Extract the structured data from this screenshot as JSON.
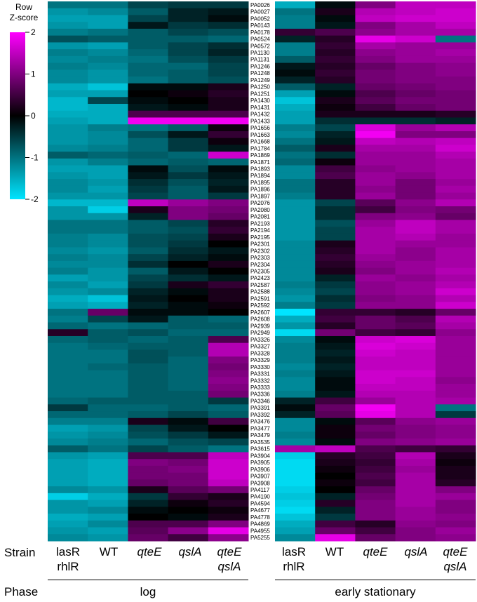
{
  "scale": {
    "title_line1": "Row",
    "title_line2": "Z-score",
    "ticks": [
      "2",
      "1",
      "0",
      "-1",
      "-2"
    ],
    "tick_values": [
      2,
      1,
      0,
      -1,
      -2
    ],
    "colors": [
      "#00e5ff",
      "#000000",
      "#ff00ff"
    ]
  },
  "strain_title": "Strain",
  "phase_title": "Phase",
  "strains": [
    {
      "line1": "lasR",
      "line2": "rhlR",
      "italic": true
    },
    {
      "line1": "WT",
      "line2": "",
      "italic": false
    },
    {
      "line1": "qteE",
      "line2": "",
      "italic": true
    },
    {
      "line1": "qslA",
      "line2": "",
      "italic": true
    },
    {
      "line1": "qteE",
      "line2": "qslA",
      "italic": true
    }
  ],
  "phases": [
    "log",
    "early stationary"
  ],
  "chart_data": {
    "type": "heatmap",
    "value_label": "Row Z-score",
    "zlim": [
      -2,
      2
    ],
    "genes": [
      "PA0026",
      "PA0027",
      "PA0052",
      "PA0143",
      "PA0178",
      "PA0524",
      "PA0572",
      "PA1130",
      "PA1131",
      "PA1246",
      "PA1248",
      "PA1249",
      "PA1250",
      "PA1251",
      "PA1430",
      "PA1431",
      "PA1432",
      "PA1433",
      "PA1656",
      "PA1663",
      "PA1668",
      "PA1784",
      "PA1869",
      "PA1871",
      "PA1893",
      "PA1894",
      "PA1895",
      "PA1896",
      "PA1897",
      "PA2076",
      "PA2080",
      "PA2081",
      "PA2193",
      "PA2194",
      "PA2195",
      "PA2301",
      "PA2302",
      "PA2303",
      "PA2304",
      "PA2305",
      "PA2423",
      "PA2587",
      "PA2588",
      "PA2591",
      "PA2592",
      "PA2607",
      "PA2608",
      "PA2939",
      "PA2949",
      "PA3326",
      "PA3327",
      "PA3328",
      "PA3329",
      "PA3330",
      "PA3331",
      "PA3332",
      "PA3333",
      "PA3336",
      "PA3346",
      "PA3391",
      "PA3392",
      "PA3476",
      "PA3477",
      "PA3479",
      "PA3535",
      "PA3615",
      "PA3904",
      "PA3905",
      "PA3906",
      "PA3907",
      "PA3908",
      "PA4117",
      "PA4190",
      "PA4594",
      "PA4677",
      "PA4778",
      "PA4869",
      "PA4955",
      "PA5255"
    ],
    "log_columns": [
      "lasR rhlR",
      "WT",
      "qteE",
      "qslA",
      "qteE qslA"
    ],
    "early_stationary_columns": [
      "lasR rhlR",
      "WT",
      "qteE",
      "qslA",
      "qteE qslA"
    ],
    "log_values": [
      [
        -1.0,
        -1.0,
        -0.6,
        -0.5,
        -0.5
      ],
      [
        -1.3,
        -1.2,
        -0.8,
        -0.3,
        -0.2
      ],
      [
        -1.4,
        -1.4,
        -0.6,
        -0.3,
        -0.1
      ],
      [
        -1.3,
        -1.4,
        -0.2,
        -0.5,
        -0.4
      ],
      [
        -1.1,
        -1.0,
        -0.8,
        -0.6,
        -0.7
      ],
      [
        -0.7,
        -0.8,
        -0.8,
        -0.8,
        -0.9
      ],
      [
        -1.3,
        -1.4,
        -0.8,
        -0.6,
        -0.4
      ],
      [
        -1.1,
        -1.2,
        -0.9,
        -0.6,
        -0.3
      ],
      [
        -1.2,
        -1.1,
        -1.0,
        -0.7,
        -0.5
      ],
      [
        -1.1,
        -1.2,
        -0.9,
        -0.9,
        -0.6
      ],
      [
        -1.2,
        -1.3,
        -0.9,
        -0.8,
        -0.6
      ],
      [
        -1.2,
        -1.3,
        -1.0,
        -0.8,
        -0.7
      ],
      [
        -1.5,
        -1.7,
        -0.1,
        -0.1,
        0.2
      ],
      [
        -1.4,
        -1.4,
        0.0,
        0.1,
        0.3
      ],
      [
        -1.6,
        -0.6,
        -0.1,
        0.0,
        0.2
      ],
      [
        -1.6,
        -1.5,
        -0.2,
        -0.1,
        0.2
      ],
      [
        -1.5,
        -1.5,
        0.6,
        0.6,
        0.6
      ],
      [
        -1.4,
        -1.5,
        1.9,
        1.9,
        1.9
      ],
      [
        -1.3,
        -1.1,
        -1.0,
        -0.8,
        0.1
      ],
      [
        -1.3,
        -1.2,
        -0.7,
        -0.2,
        0.4
      ],
      [
        -1.3,
        -1.2,
        -0.9,
        -0.5,
        0.1
      ],
      [
        -1.2,
        -1.1,
        -0.9,
        -0.5,
        -0.2
      ],
      [
        -0.8,
        -0.9,
        -0.8,
        -0.9,
        1.6
      ],
      [
        -1.3,
        -1.1,
        -0.9,
        -0.8,
        -0.9
      ],
      [
        -1.4,
        -1.4,
        -0.1,
        -0.7,
        -0.1
      ],
      [
        -1.3,
        -1.4,
        -0.2,
        -0.5,
        -0.2
      ],
      [
        -1.2,
        -1.3,
        -0.4,
        -0.7,
        -0.3
      ],
      [
        -1.2,
        -1.4,
        -0.5,
        -0.8,
        -0.2
      ],
      [
        -1.3,
        -1.3,
        -0.6,
        -0.8,
        -0.5
      ],
      [
        -1.6,
        -1.6,
        1.5,
        1.2,
        1.0
      ],
      [
        -1.3,
        -1.8,
        0.2,
        1.0,
        0.9
      ],
      [
        -1.3,
        -1.3,
        -0.3,
        1.0,
        0.8
      ],
      [
        -1.0,
        -1.0,
        -0.8,
        -0.6,
        0.3
      ],
      [
        -1.0,
        -1.0,
        -0.8,
        -0.7,
        0.4
      ],
      [
        -1.1,
        -1.2,
        -0.7,
        -0.6,
        0.2
      ],
      [
        -1.1,
        -1.2,
        -0.7,
        -0.5,
        0.0
      ],
      [
        -1.2,
        -1.3,
        -0.8,
        -0.4,
        -0.2
      ],
      [
        -1.1,
        -1.2,
        -0.6,
        -0.3,
        -0.1
      ],
      [
        -1.2,
        -1.2,
        -0.4,
        0.0,
        0.2
      ],
      [
        -1.1,
        -1.3,
        -0.8,
        -0.2,
        0.0
      ],
      [
        -1.4,
        -1.3,
        -0.6,
        -0.4,
        -0.2
      ],
      [
        -1.2,
        -1.4,
        -0.5,
        0.2,
        0.4
      ],
      [
        -1.3,
        -1.2,
        -0.3,
        -0.1,
        0.2
      ],
      [
        -1.5,
        -1.7,
        -0.2,
        0.0,
        0.2
      ],
      [
        -1.4,
        -1.5,
        -0.3,
        -0.1,
        0.1
      ],
      [
        -1.0,
        0.8,
        -0.1,
        -0.1,
        0.0
      ],
      [
        -1.1,
        -0.6,
        -0.2,
        -0.8,
        -0.9
      ],
      [
        -0.9,
        -1.0,
        -0.9,
        -0.8,
        -0.8
      ],
      [
        0.3,
        -0.8,
        -0.7,
        -0.9,
        -0.9
      ],
      [
        -0.9,
        -0.8,
        -0.9,
        -0.8,
        0.6
      ],
      [
        -1.0,
        -0.9,
        -0.8,
        -0.8,
        1.4
      ],
      [
        -1.0,
        -1.0,
        -0.7,
        -0.8,
        1.4
      ],
      [
        -1.0,
        -1.0,
        -0.7,
        -0.9,
        1.0
      ],
      [
        -1.0,
        -0.9,
        -0.8,
        -0.9,
        0.9
      ],
      [
        -1.0,
        -1.0,
        -0.8,
        -0.9,
        1.0
      ],
      [
        -1.0,
        -1.0,
        -0.8,
        -0.9,
        1.1
      ],
      [
        -1.0,
        -1.0,
        -0.8,
        -0.9,
        1.0
      ],
      [
        -1.0,
        -1.0,
        -0.8,
        -0.8,
        0.9
      ],
      [
        -0.9,
        -0.8,
        -0.8,
        -0.8,
        -0.5
      ],
      [
        -0.5,
        -0.9,
        -0.9,
        -0.8,
        -0.9
      ],
      [
        -0.9,
        -0.9,
        -0.8,
        -0.6,
        -0.8
      ],
      [
        -1.1,
        -1.1,
        0.2,
        -0.1,
        0.5
      ],
      [
        -1.4,
        -1.3,
        -0.6,
        -0.2,
        0.0
      ],
      [
        -1.3,
        -1.2,
        -0.7,
        -0.5,
        -0.2
      ],
      [
        -1.2,
        -1.1,
        -0.9,
        -0.7,
        -0.6
      ],
      [
        -0.8,
        -1.0,
        -0.6,
        -0.8,
        -1.0
      ],
      [
        -1.3,
        -1.4,
        0.6,
        0.6,
        1.5
      ],
      [
        -1.4,
        -1.5,
        1.0,
        0.9,
        1.6
      ],
      [
        -1.4,
        -1.5,
        0.9,
        1.0,
        1.6
      ],
      [
        -1.4,
        -1.5,
        0.9,
        0.9,
        1.6
      ],
      [
        -1.4,
        -1.5,
        0.8,
        0.9,
        1.5
      ],
      [
        -1.2,
        -1.3,
        0.2,
        0.7,
        0.9
      ],
      [
        -1.8,
        -1.5,
        -0.5,
        0.4,
        0.2
      ],
      [
        -1.3,
        -1.4,
        -0.3,
        0.1,
        0.3
      ],
      [
        -1.3,
        -1.2,
        -0.1,
        0.0,
        0.1
      ],
      [
        -1.5,
        -1.4,
        0.0,
        -0.1,
        0.2
      ],
      [
        -1.4,
        -1.2,
        0.6,
        0.6,
        1.0
      ],
      [
        -1.3,
        -1.4,
        0.7,
        1.1,
        1.8
      ],
      [
        -1.2,
        -1.3,
        0.8,
        0.5,
        1.1
      ]
    ],
    "early_stationary_values": [
      [
        -1.5,
        -0.1,
        1.0,
        1.5,
        1.5
      ],
      [
        -1.0,
        0.2,
        1.4,
        1.5,
        1.6
      ],
      [
        -1.1,
        -0.1,
        1.5,
        1.6,
        1.6
      ],
      [
        -1.1,
        -0.2,
        1.0,
        1.3,
        1.5
      ],
      [
        0.4,
        0.6,
        1.1,
        1.3,
        1.3
      ],
      [
        -0.3,
        0.3,
        1.8,
        1.6,
        -1.0
      ],
      [
        -1.1,
        0.4,
        1.3,
        1.2,
        1.2
      ],
      [
        -1.1,
        0.3,
        1.1,
        1.2,
        1.3
      ],
      [
        -0.8,
        0.4,
        1.0,
        1.2,
        1.2
      ],
      [
        -0.2,
        0.3,
        0.8,
        1.0,
        1.1
      ],
      [
        -0.1,
        0.4,
        0.9,
        1.0,
        1.1
      ],
      [
        -0.3,
        0.3,
        0.9,
        1.0,
        1.0
      ],
      [
        -0.8,
        -0.3,
        0.8,
        0.9,
        1.0
      ],
      [
        -1.4,
        -0.1,
        0.6,
        0.8,
        0.9
      ],
      [
        -1.7,
        0.2,
        0.7,
        0.9,
        0.9
      ],
      [
        -1.5,
        0.1,
        0.5,
        0.8,
        0.9
      ],
      [
        -1.4,
        0.2,
        0.2,
        0.2,
        0.3
      ],
      [
        -1.4,
        -0.4,
        -0.4,
        -0.4,
        -0.3
      ],
      [
        -1.1,
        -0.6,
        1.7,
        1.2,
        1.4
      ],
      [
        -1.2,
        -0.3,
        1.9,
        1.0,
        1.0
      ],
      [
        -1.0,
        -0.2,
        1.5,
        1.4,
        1.5
      ],
      [
        -0.8,
        0.2,
        1.3,
        1.3,
        1.6
      ],
      [
        -1.0,
        -0.4,
        1.2,
        1.2,
        1.4
      ],
      [
        -0.9,
        0.1,
        1.2,
        1.2,
        1.3
      ],
      [
        -1.2,
        0.5,
        1.1,
        1.2,
        1.3
      ],
      [
        -1.2,
        0.6,
        1.2,
        1.1,
        1.3
      ],
      [
        -1.0,
        0.3,
        1.2,
        0.9,
        1.2
      ],
      [
        -1.0,
        0.3,
        1.1,
        0.9,
        1.3
      ],
      [
        -1.1,
        0.3,
        1.2,
        0.9,
        1.2
      ],
      [
        -1.3,
        -0.6,
        0.7,
        1.1,
        1.4
      ],
      [
        -1.3,
        -0.4,
        0.5,
        1.0,
        0.9
      ],
      [
        -1.3,
        -0.4,
        1.0,
        1.1,
        0.8
      ],
      [
        -1.3,
        -0.7,
        1.2,
        1.5,
        1.3
      ],
      [
        -1.3,
        -0.6,
        1.3,
        1.5,
        1.3
      ],
      [
        -1.3,
        -0.6,
        1.3,
        1.4,
        1.2
      ],
      [
        -1.2,
        0.2,
        1.3,
        1.2,
        1.2
      ],
      [
        -1.2,
        0.3,
        1.3,
        1.1,
        1.3
      ],
      [
        -1.2,
        0.4,
        1.2,
        1.1,
        1.3
      ],
      [
        -1.2,
        0.3,
        1.1,
        1.2,
        1.3
      ],
      [
        -1.2,
        0.2,
        1.0,
        1.2,
        1.4
      ],
      [
        -1.2,
        -0.3,
        1.2,
        1.1,
        1.3
      ],
      [
        -1.1,
        -0.5,
        1.1,
        1.2,
        1.4
      ],
      [
        -1.2,
        -0.6,
        1.1,
        1.2,
        1.6
      ],
      [
        -1.3,
        -0.4,
        1.0,
        1.1,
        1.4
      ],
      [
        -1.1,
        -0.5,
        1.1,
        1.1,
        1.6
      ],
      [
        -2.0,
        0.4,
        0.4,
        0.3,
        0.8
      ],
      [
        -1.5,
        0.5,
        0.8,
        0.6,
        1.4
      ],
      [
        -1.3,
        0.3,
        0.8,
        0.7,
        1.3
      ],
      [
        -1.9,
        0.9,
        0.5,
        0.4,
        1.1
      ],
      [
        -1.2,
        -0.1,
        1.6,
        1.7,
        1.2
      ],
      [
        -1.1,
        -0.2,
        1.7,
        1.6,
        1.2
      ],
      [
        -1.1,
        -0.3,
        1.6,
        1.5,
        1.2
      ],
      [
        -1.1,
        -0.2,
        1.5,
        1.5,
        1.2
      ],
      [
        -1.2,
        -0.3,
        1.5,
        1.5,
        1.2
      ],
      [
        -1.1,
        -0.2,
        1.6,
        1.6,
        1.2
      ],
      [
        -1.2,
        -0.1,
        1.6,
        1.5,
        1.1
      ],
      [
        -1.2,
        -0.1,
        1.5,
        1.5,
        1.2
      ],
      [
        -1.1,
        -0.2,
        1.4,
        1.4,
        1.2
      ],
      [
        -0.3,
        0.5,
        1.2,
        1.4,
        1.3
      ],
      [
        -0.1,
        0.8,
        1.9,
        1.4,
        -1.0
      ],
      [
        -0.3,
        0.7,
        1.8,
        1.4,
        -0.5
      ],
      [
        -1.2,
        -0.1,
        0.7,
        1.1,
        1.2
      ],
      [
        -1.2,
        0.1,
        0.9,
        1.0,
        1.1
      ],
      [
        -1.1,
        0.1,
        0.8,
        1.0,
        1.1
      ],
      [
        -1.2,
        -0.1,
        1.0,
        1.1,
        1.2
      ],
      [
        1.3,
        1.5,
        0.6,
        0.5,
        0.4
      ],
      [
        -1.8,
        0.3,
        0.5,
        1.4,
        0.2
      ],
      [
        -1.9,
        0.2,
        0.4,
        1.3,
        0.1
      ],
      [
        -1.9,
        0.1,
        0.5,
        1.2,
        0.2
      ],
      [
        -1.9,
        0.0,
        0.6,
        1.3,
        0.2
      ],
      [
        -1.9,
        0.1,
        0.5,
        1.3,
        0.3
      ],
      [
        -1.8,
        0.0,
        0.8,
        1.3,
        1.0
      ],
      [
        -1.7,
        -0.3,
        0.9,
        1.3,
        1.2
      ],
      [
        -1.8,
        0.3,
        1.0,
        1.3,
        1.0
      ],
      [
        -1.9,
        -0.3,
        1.0,
        1.2,
        1.0
      ],
      [
        -1.7,
        -0.5,
        1.0,
        1.2,
        1.1
      ],
      [
        -1.5,
        0.5,
        0.3,
        1.1,
        1.0
      ],
      [
        -1.4,
        0.8,
        0.5,
        1.0,
        1.2
      ],
      [
        -1.2,
        1.8,
        0.8,
        1.0,
        1.1
      ]
    ]
  }
}
